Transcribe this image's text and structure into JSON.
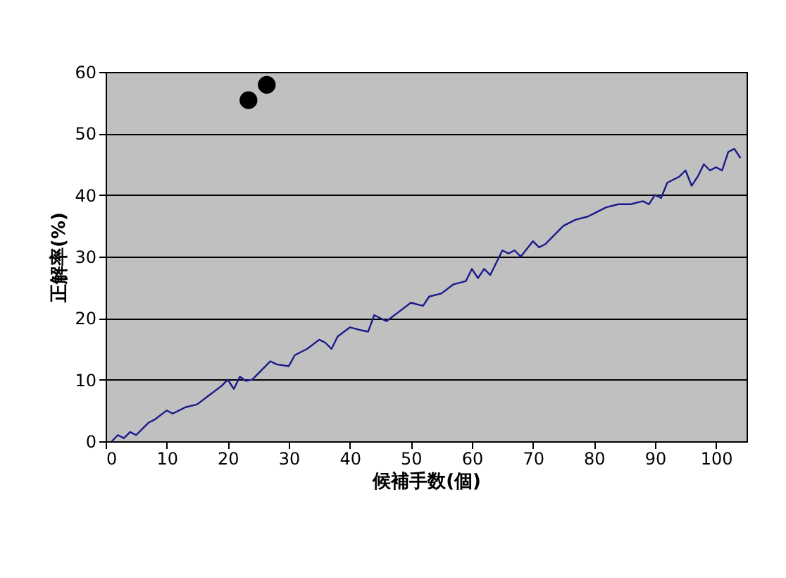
{
  "chart_data": {
    "type": "line",
    "xlabel": "候補手数(個)",
    "ylabel": "正解率(%)",
    "xlim": [
      0,
      105
    ],
    "xticks": [
      0,
      10,
      20,
      30,
      40,
      50,
      60,
      70,
      80,
      90,
      100
    ],
    "ylim": [
      0,
      60
    ],
    "yticks": [
      0,
      10,
      20,
      30,
      40,
      50,
      60
    ],
    "grid": "y",
    "series": [
      {
        "color": "#1a1a8c",
        "x": [
          1,
          2,
          3,
          4,
          5,
          7,
          8,
          10,
          11,
          13,
          15,
          17,
          19,
          20,
          21,
          22,
          23,
          24,
          25,
          27,
          28,
          30,
          31,
          33,
          35,
          36,
          37,
          38,
          40,
          42,
          43,
          44,
          46,
          48,
          50,
          52,
          53,
          55,
          57,
          59,
          60,
          61,
          62,
          63,
          64,
          65,
          66,
          67,
          68,
          70,
          71,
          72,
          73,
          75,
          77,
          79,
          80,
          82,
          84,
          86,
          88,
          89,
          90,
          91,
          92,
          94,
          95,
          96,
          97,
          98,
          99,
          100,
          101,
          102,
          103,
          104
        ],
        "values": [
          0,
          1,
          0.5,
          1.5,
          1,
          3,
          3.5,
          5,
          4.5,
          5.5,
          6,
          7.5,
          9,
          10,
          8.5,
          10.5,
          9.8,
          10,
          11,
          13,
          12.5,
          12.2,
          14,
          15,
          16.5,
          16,
          15,
          17,
          18.5,
          18,
          17.8,
          20.5,
          19.5,
          21,
          22.5,
          22,
          23.5,
          24,
          25.5,
          26,
          28,
          26.5,
          28,
          27,
          29,
          31,
          30.5,
          31,
          30,
          32.5,
          31.5,
          32,
          33,
          35,
          36,
          36.5,
          37,
          38,
          38.5,
          38.5,
          39,
          38.5,
          40,
          39.5,
          42,
          43,
          44,
          41.5,
          43,
          45,
          44,
          44.5,
          44,
          47,
          47.5,
          46
        ]
      },
      {
        "type": "scatter",
        "color": "#000000",
        "marker": "circle",
        "x": [
          23.4,
          26.4
        ],
        "values": [
          55.4,
          57.9
        ]
      }
    ]
  }
}
